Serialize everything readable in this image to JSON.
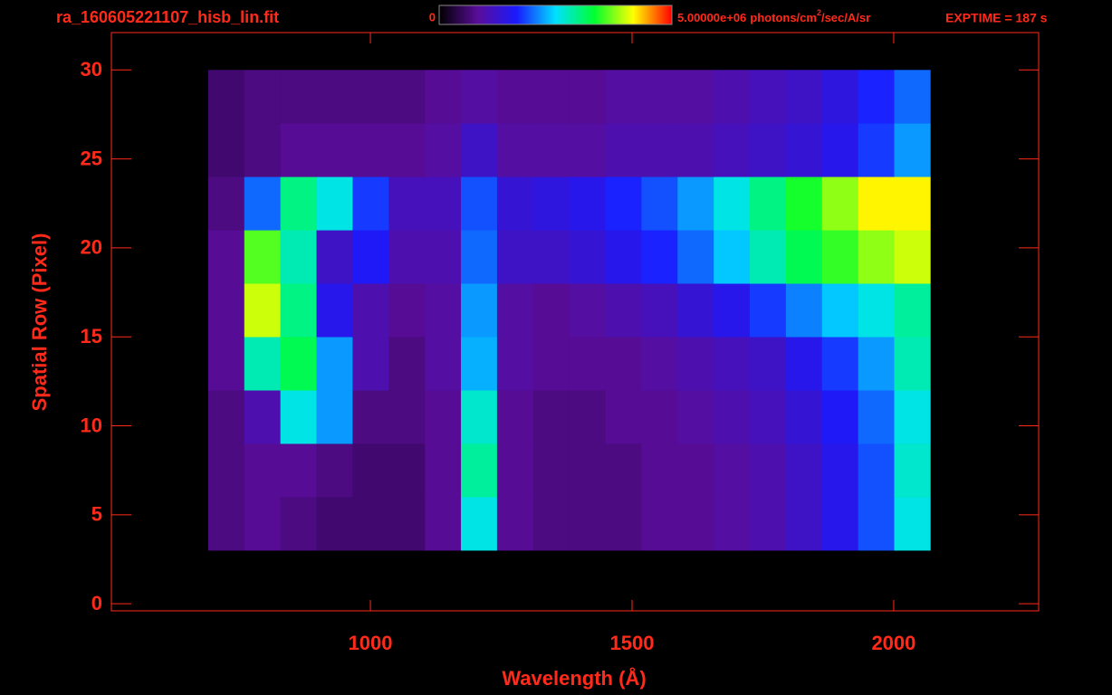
{
  "chart_data": {
    "type": "heatmap",
    "title": "ra_160605221107_hisb_lin.fit",
    "exposure_label": "EXPTIME = 187 s",
    "x_label": "Wavelength (Å)",
    "y_label": "Spatial Row (Pixel)",
    "xlim": [
      505,
      2277
    ],
    "xticks": [
      1000,
      1500,
      2000
    ],
    "ylim": [
      -0.4,
      32.1
    ],
    "yticks": [
      0,
      5,
      10,
      15,
      20,
      25,
      30
    ],
    "x_edges": [
      690,
      759,
      828,
      897,
      966,
      1035,
      1104,
      1173,
      1242,
      1311,
      1380,
      1449,
      1518,
      1587,
      1656,
      1725,
      1794,
      1863,
      1932,
      2001,
      2070
    ],
    "y_edges": [
      3,
      6,
      9,
      12,
      15,
      18,
      21,
      24,
      27,
      30
    ],
    "colorbar": {
      "ticks": [
        0,
        {
          "value": 5000000,
          "label": "5.00000e+06"
        }
      ],
      "unit": [
        "photons/cm",
        "2",
        "/sec/A/sr"
      ]
    },
    "colormap": [
      "#000000",
      "#5a0d9a",
      "#1a1aff",
      "#00e0ff",
      "#00ff30",
      "#ffff00",
      "#ff0000"
    ],
    "color": "#ff2a1a",
    "values": [
      [
        700000.0,
        800000.0,
        700000.0,
        600000.0,
        600000.0,
        600000.0,
        800000.0,
        2600000.0,
        800000.0,
        700000.0,
        700000.0,
        700000.0,
        800000.0,
        800000.0,
        900000.0,
        1000000.0,
        1200000.0,
        1500000.0,
        1900000.0,
        2600000.0
      ],
      [
        700000.0,
        800000.0,
        800000.0,
        700000.0,
        600000.0,
        600000.0,
        800000.0,
        2900000.0,
        800000.0,
        700000.0,
        700000.0,
        700000.0,
        800000.0,
        800000.0,
        900000.0,
        1000000.0,
        1200000.0,
        1500000.0,
        1900000.0,
        2700000.0
      ],
      [
        700000.0,
        1000000.0,
        2600000.0,
        2200000.0,
        700000.0,
        700000.0,
        800000.0,
        2700000.0,
        800000.0,
        700000.0,
        700000.0,
        800000.0,
        800000.0,
        900000.0,
        1000000.0,
        1100000.0,
        1300000.0,
        1600000.0,
        2000000.0,
        2600000.0
      ],
      [
        800000.0,
        2800000.0,
        3200000.0,
        2200000.0,
        1000000.0,
        700000.0,
        900000.0,
        2300000.0,
        900000.0,
        800000.0,
        800000.0,
        800000.0,
        900000.0,
        1000000.0,
        1100000.0,
        1200000.0,
        1500000.0,
        1800000.0,
        2200000.0,
        2800000.0
      ],
      [
        800000.0,
        4000000.0,
        3000000.0,
        1500000.0,
        1000000.0,
        800000.0,
        900000.0,
        2200000.0,
        900000.0,
        800000.0,
        900000.0,
        1000000.0,
        1100000.0,
        1300000.0,
        1500000.0,
        1800000.0,
        2100000.0,
        2400000.0,
        2600000.0,
        2900000.0
      ],
      [
        800000.0,
        3600000.0,
        2800000.0,
        1200000.0,
        1600000.0,
        1000000.0,
        1000000.0,
        2000000.0,
        1200000.0,
        1200000.0,
        1300000.0,
        1500000.0,
        1700000.0,
        2000000.0,
        2400000.0,
        2800000.0,
        3200000.0,
        3500000.0,
        3800000.0,
        4000000.0
      ],
      [
        700000.0,
        2000000.0,
        3000000.0,
        2600000.0,
        1800000.0,
        1100000.0,
        1100000.0,
        1900000.0,
        1300000.0,
        1400000.0,
        1500000.0,
        1700000.0,
        1900000.0,
        2200000.0,
        2600000.0,
        3000000.0,
        3400000.0,
        3800000.0,
        4200000.0,
        4200000.0
      ],
      [
        600000.0,
        700000.0,
        800000.0,
        800000.0,
        800000.0,
        800000.0,
        900000.0,
        1200000.0,
        900000.0,
        900000.0,
        900000.0,
        1000000.0,
        1000000.0,
        1000000.0,
        1100000.0,
        1200000.0,
        1300000.0,
        1500000.0,
        1800000.0,
        2200000.0
      ],
      [
        600000.0,
        700000.0,
        700000.0,
        700000.0,
        700000.0,
        700000.0,
        800000.0,
        900000.0,
        800000.0,
        800000.0,
        800000.0,
        900000.0,
        900000.0,
        900000.0,
        1000000.0,
        1100000.0,
        1200000.0,
        1400000.0,
        1700000.0,
        2000000.0
      ]
    ]
  }
}
